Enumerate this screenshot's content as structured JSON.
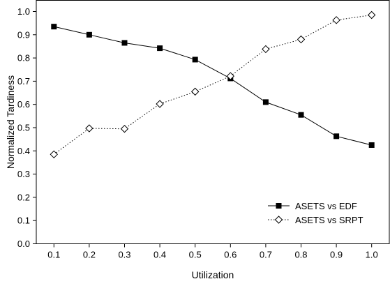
{
  "chart_data": {
    "type": "line",
    "title": "",
    "xlabel": "Utilization",
    "ylabel": "Normalized Tardiness",
    "x": [
      0.1,
      0.2,
      0.3,
      0.4,
      0.5,
      0.6,
      0.7,
      0.8,
      0.9,
      1.0
    ],
    "x_tick_labels": [
      "0.1",
      "0.2",
      "0.3",
      "0.4",
      "0.5",
      "0.6",
      "0.7",
      "0.8",
      "0.9",
      "1.0"
    ],
    "xlim": [
      0.05,
      1.05
    ],
    "ylim": [
      0.0,
      1.0
    ],
    "y_ticks": [
      0.0,
      0.1,
      0.2,
      0.3,
      0.4,
      0.5,
      0.6,
      0.7,
      0.8,
      0.9,
      1.0
    ],
    "y_tick_labels": [
      "0.0",
      "0.1",
      "0.2",
      "0.3",
      "0.4",
      "0.5",
      "0.6",
      "0.7",
      "0.8",
      "0.9",
      "1.0"
    ],
    "grid": false,
    "legend_position": "bottom-right",
    "series": [
      {
        "name": "ASETS vs EDF",
        "marker": "filled-square",
        "line_style": "solid",
        "color": "#000000",
        "values": [
          0.935,
          0.9,
          0.865,
          0.842,
          0.793,
          0.712,
          0.61,
          0.555,
          0.463,
          0.425
        ]
      },
      {
        "name": "ASETS vs SRPT",
        "marker": "open-diamond",
        "line_style": "dotted",
        "color": "#000000",
        "values": [
          0.385,
          0.497,
          0.495,
          0.602,
          0.655,
          0.722,
          0.838,
          0.88,
          0.963,
          0.985
        ]
      }
    ]
  }
}
